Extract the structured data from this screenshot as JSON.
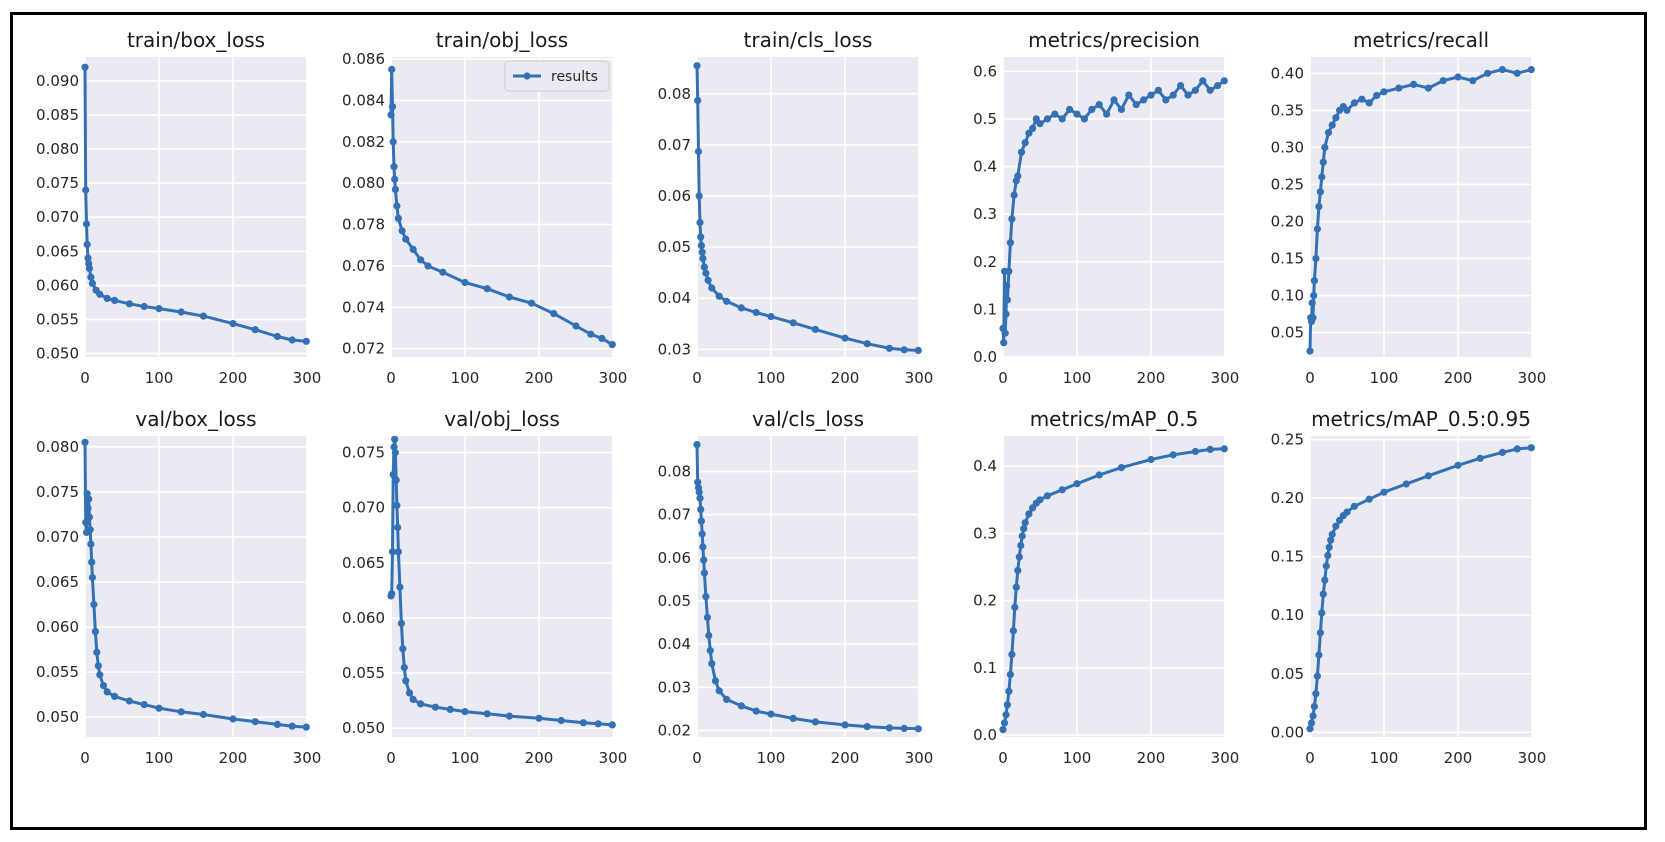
{
  "figure": {
    "legend_label": "results",
    "series_color": "#3470b4",
    "panel_bg": "#eaeaf2",
    "grid_color": "#ffffff"
  },
  "chart_data": [
    {
      "type": "line",
      "title": "train/box_loss",
      "xlim": [
        0,
        300
      ],
      "ylim": [
        0.0495,
        0.0935
      ],
      "xticks": [
        0,
        100,
        200,
        300
      ],
      "xtick_labels": [
        "0",
        "100",
        "200",
        "300"
      ],
      "yticks": [
        0.05,
        0.055,
        0.06,
        0.065,
        0.07,
        0.075,
        0.08,
        0.085,
        0.09
      ],
      "ytick_labels": [
        "0.050",
        "0.055",
        "0.060",
        "0.065",
        "0.070",
        "0.075",
        "0.080",
        "0.085",
        "0.090"
      ],
      "series": [
        {
          "name": "results",
          "x": [
            0,
            1,
            2,
            3,
            4,
            5,
            6,
            8,
            10,
            15,
            20,
            30,
            40,
            60,
            80,
            100,
            130,
            160,
            200,
            230,
            260,
            280,
            299
          ],
          "y": [
            0.092,
            0.074,
            0.069,
            0.066,
            0.064,
            0.0632,
            0.0625,
            0.0612,
            0.0603,
            0.0593,
            0.0587,
            0.0581,
            0.0578,
            0.0573,
            0.0569,
            0.0566,
            0.0561,
            0.0555,
            0.0544,
            0.0535,
            0.0525,
            0.052,
            0.0518
          ]
        }
      ]
    },
    {
      "type": "line",
      "title": "train/obj_loss",
      "legend": "top-right",
      "xlim": [
        0,
        300
      ],
      "ylim": [
        0.0716,
        0.0861
      ],
      "xticks": [
        0,
        100,
        200,
        300
      ],
      "xtick_labels": [
        "0",
        "100",
        "200",
        "300"
      ],
      "yticks": [
        0.072,
        0.074,
        0.076,
        0.078,
        0.08,
        0.082,
        0.084,
        0.086
      ],
      "ytick_labels": [
        "0.072",
        "0.074",
        "0.076",
        "0.078",
        "0.080",
        "0.082",
        "0.084",
        "0.086"
      ],
      "series": [
        {
          "name": "results",
          "x": [
            0,
            1,
            2,
            3,
            4,
            5,
            6,
            8,
            10,
            15,
            20,
            30,
            40,
            50,
            70,
            100,
            130,
            160,
            190,
            220,
            250,
            270,
            285,
            299
          ],
          "y": [
            0.0833,
            0.0855,
            0.0837,
            0.082,
            0.0808,
            0.0802,
            0.0797,
            0.0789,
            0.0783,
            0.0777,
            0.0773,
            0.0768,
            0.0763,
            0.076,
            0.0757,
            0.0752,
            0.0749,
            0.0745,
            0.0742,
            0.0737,
            0.0731,
            0.0727,
            0.0725,
            0.0722
          ]
        }
      ]
    },
    {
      "type": "line",
      "title": "train/cls_loss",
      "xlim": [
        0,
        300
      ],
      "ylim": [
        0.0285,
        0.0872
      ],
      "xticks": [
        0,
        100,
        200,
        300
      ],
      "xtick_labels": [
        "0",
        "100",
        "200",
        "300"
      ],
      "yticks": [
        0.03,
        0.04,
        0.05,
        0.06,
        0.07,
        0.08
      ],
      "ytick_labels": [
        "0.03",
        "0.04",
        "0.05",
        "0.06",
        "0.07",
        "0.08"
      ],
      "series": [
        {
          "name": "results",
          "x": [
            0,
            1,
            2,
            3,
            4,
            5,
            6,
            7,
            8,
            10,
            12,
            15,
            20,
            30,
            40,
            60,
            80,
            100,
            130,
            160,
            200,
            230,
            260,
            280,
            299
          ],
          "y": [
            0.0855,
            0.0787,
            0.0687,
            0.06,
            0.0548,
            0.052,
            0.0503,
            0.049,
            0.0478,
            0.0461,
            0.0449,
            0.0435,
            0.042,
            0.0404,
            0.0394,
            0.0381,
            0.0372,
            0.0364,
            0.0352,
            0.0339,
            0.0322,
            0.0311,
            0.0302,
            0.0299,
            0.0298
          ]
        }
      ]
    },
    {
      "type": "line",
      "title": "metrics/precision",
      "xlim": [
        0,
        300
      ],
      "ylim": [
        0.0,
        0.63
      ],
      "xticks": [
        0,
        100,
        200,
        300
      ],
      "xtick_labels": [
        "0",
        "100",
        "200",
        "300"
      ],
      "yticks": [
        0,
        0.1,
        0.2,
        0.3,
        0.4,
        0.5,
        0.6
      ],
      "ytick_labels": [
        "0.0",
        "0.1",
        "0.2",
        "0.3",
        "0.4",
        "0.5",
        "0.6"
      ],
      "series": [
        {
          "name": "results",
          "x": [
            0,
            1,
            2,
            3,
            4,
            5,
            6,
            8,
            10,
            12,
            15,
            18,
            20,
            25,
            30,
            35,
            40,
            45,
            50,
            60,
            70,
            80,
            90,
            100,
            110,
            120,
            130,
            140,
            150,
            160,
            170,
            180,
            190,
            200,
            210,
            220,
            230,
            240,
            250,
            260,
            270,
            280,
            290,
            299
          ],
          "y": [
            0.06,
            0.03,
            0.18,
            0.05,
            0.09,
            0.15,
            0.12,
            0.18,
            0.24,
            0.29,
            0.34,
            0.37,
            0.38,
            0.43,
            0.45,
            0.47,
            0.48,
            0.5,
            0.49,
            0.5,
            0.51,
            0.5,
            0.52,
            0.51,
            0.5,
            0.52,
            0.53,
            0.51,
            0.54,
            0.52,
            0.55,
            0.53,
            0.54,
            0.55,
            0.56,
            0.54,
            0.55,
            0.57,
            0.55,
            0.56,
            0.58,
            0.56,
            0.57,
            0.58
          ]
        }
      ]
    },
    {
      "type": "line",
      "title": "metrics/recall",
      "xlim": [
        0,
        300
      ],
      "ylim": [
        0.017,
        0.422
      ],
      "xticks": [
        0,
        100,
        200,
        300
      ],
      "xtick_labels": [
        "0",
        "100",
        "200",
        "300"
      ],
      "yticks": [
        0.05,
        0.1,
        0.15,
        0.2,
        0.25,
        0.3,
        0.35,
        0.4
      ],
      "ytick_labels": [
        "0.05",
        "0.10",
        "0.15",
        "0.20",
        "0.25",
        "0.30",
        "0.35",
        "0.40"
      ],
      "series": [
        {
          "name": "results",
          "x": [
            0,
            1,
            2,
            3,
            4,
            5,
            6,
            8,
            10,
            12,
            14,
            16,
            18,
            20,
            25,
            30,
            35,
            40,
            45,
            50,
            60,
            70,
            80,
            90,
            100,
            120,
            140,
            160,
            180,
            200,
            220,
            240,
            260,
            280,
            299
          ],
          "y": [
            0.025,
            0.07,
            0.065,
            0.09,
            0.07,
            0.1,
            0.12,
            0.15,
            0.19,
            0.22,
            0.24,
            0.26,
            0.28,
            0.3,
            0.32,
            0.33,
            0.34,
            0.35,
            0.355,
            0.35,
            0.36,
            0.365,
            0.36,
            0.37,
            0.375,
            0.38,
            0.385,
            0.38,
            0.39,
            0.395,
            0.39,
            0.4,
            0.405,
            0.4,
            0.405
          ]
        }
      ]
    },
    {
      "type": "line",
      "title": "val/box_loss",
      "xlim": [
        0,
        300
      ],
      "ylim": [
        0.0478,
        0.0812
      ],
      "xticks": [
        0,
        100,
        200,
        300
      ],
      "xtick_labels": [
        "0",
        "100",
        "200",
        "300"
      ],
      "yticks": [
        0.05,
        0.055,
        0.06,
        0.065,
        0.07,
        0.075,
        0.08
      ],
      "ytick_labels": [
        "0.050",
        "0.055",
        "0.060",
        "0.065",
        "0.070",
        "0.075",
        "0.080"
      ],
      "series": [
        {
          "name": "results",
          "x": [
            0,
            1,
            2,
            3,
            4,
            5,
            6,
            7,
            8,
            9,
            10,
            12,
            14,
            16,
            18,
            20,
            25,
            30,
            40,
            60,
            80,
            100,
            130,
            160,
            200,
            230,
            260,
            280,
            299
          ],
          "y": [
            0.0805,
            0.0716,
            0.0705,
            0.0748,
            0.0732,
            0.0742,
            0.0722,
            0.0708,
            0.0692,
            0.0672,
            0.0655,
            0.0625,
            0.0595,
            0.0572,
            0.0557,
            0.0547,
            0.0535,
            0.0528,
            0.0523,
            0.0518,
            0.0514,
            0.051,
            0.0506,
            0.0503,
            0.0498,
            0.0495,
            0.0492,
            0.049,
            0.0489
          ]
        }
      ]
    },
    {
      "type": "line",
      "title": "val/obj_loss",
      "xlim": [
        0,
        300
      ],
      "ylim": [
        0.0492,
        0.0765
      ],
      "xticks": [
        0,
        100,
        200,
        300
      ],
      "xtick_labels": [
        "0",
        "100",
        "200",
        "300"
      ],
      "yticks": [
        0.05,
        0.055,
        0.06,
        0.065,
        0.07,
        0.075
      ],
      "ytick_labels": [
        "0.050",
        "0.055",
        "0.060",
        "0.065",
        "0.070",
        "0.075"
      ],
      "series": [
        {
          "name": "results",
          "x": [
            0,
            1,
            2,
            3,
            4,
            5,
            6,
            7,
            8,
            9,
            10,
            12,
            14,
            16,
            18,
            20,
            25,
            30,
            40,
            60,
            80,
            100,
            130,
            160,
            200,
            230,
            260,
            280,
            299
          ],
          "y": [
            0.062,
            0.0622,
            0.066,
            0.073,
            0.0755,
            0.0762,
            0.075,
            0.0725,
            0.0702,
            0.0682,
            0.066,
            0.0628,
            0.0595,
            0.0572,
            0.0555,
            0.0543,
            0.0532,
            0.0526,
            0.0522,
            0.0519,
            0.0517,
            0.0515,
            0.0513,
            0.0511,
            0.0509,
            0.0507,
            0.0505,
            0.0504,
            0.0503
          ]
        }
      ]
    },
    {
      "type": "line",
      "title": "val/cls_loss",
      "xlim": [
        0,
        300
      ],
      "ylim": [
        0.0185,
        0.0882
      ],
      "xticks": [
        0,
        100,
        200,
        300
      ],
      "xtick_labels": [
        "0",
        "100",
        "200",
        "300"
      ],
      "yticks": [
        0.02,
        0.03,
        0.04,
        0.05,
        0.06,
        0.07,
        0.08
      ],
      "ytick_labels": [
        "0.02",
        "0.03",
        "0.04",
        "0.05",
        "0.06",
        "0.07",
        "0.08"
      ],
      "series": [
        {
          "name": "results",
          "x": [
            0,
            1,
            2,
            3,
            4,
            5,
            6,
            7,
            8,
            9,
            10,
            12,
            14,
            16,
            18,
            20,
            25,
            30,
            40,
            60,
            80,
            100,
            130,
            160,
            200,
            230,
            260,
            280,
            299
          ],
          "y": [
            0.0862,
            0.0775,
            0.0762,
            0.0752,
            0.0738,
            0.0712,
            0.0685,
            0.0655,
            0.0625,
            0.0595,
            0.0565,
            0.051,
            0.0462,
            0.042,
            0.0385,
            0.0355,
            0.0315,
            0.0292,
            0.0272,
            0.0257,
            0.0245,
            0.0238,
            0.0228,
            0.022,
            0.0213,
            0.0209,
            0.0206,
            0.0205,
            0.0204
          ]
        }
      ]
    },
    {
      "type": "line",
      "title": "metrics/mAP_0.5",
      "xlim": [
        0,
        300
      ],
      "ylim": [
        -0.003,
        0.445
      ],
      "xticks": [
        0,
        100,
        200,
        300
      ],
      "xtick_labels": [
        "0",
        "100",
        "200",
        "300"
      ],
      "yticks": [
        0,
        0.1,
        0.2,
        0.3,
        0.4
      ],
      "ytick_labels": [
        "0.0",
        "0.1",
        "0.2",
        "0.3",
        "0.4"
      ],
      "series": [
        {
          "name": "results",
          "x": [
            0,
            2,
            4,
            6,
            8,
            10,
            12,
            14,
            16,
            18,
            20,
            22,
            24,
            26,
            28,
            30,
            35,
            40,
            45,
            50,
            60,
            80,
            100,
            130,
            160,
            200,
            230,
            260,
            280,
            299
          ],
          "y": [
            0.008,
            0.018,
            0.03,
            0.045,
            0.065,
            0.09,
            0.12,
            0.155,
            0.19,
            0.22,
            0.245,
            0.265,
            0.282,
            0.296,
            0.307,
            0.316,
            0.329,
            0.338,
            0.345,
            0.35,
            0.356,
            0.365,
            0.374,
            0.387,
            0.398,
            0.41,
            0.417,
            0.422,
            0.425,
            0.426
          ]
        }
      ]
    },
    {
      "type": "line",
      "title": "metrics/mAP_0.5:0.95",
      "xlim": [
        0,
        300
      ],
      "ylim": [
        -0.004,
        0.253
      ],
      "xticks": [
        0,
        100,
        200,
        300
      ],
      "xtick_labels": [
        "0",
        "100",
        "200",
        "300"
      ],
      "yticks": [
        0,
        0.05,
        0.1,
        0.15,
        0.2,
        0.25
      ],
      "ytick_labels": [
        "0.00",
        "0.05",
        "0.10",
        "0.15",
        "0.20",
        "0.25"
      ],
      "series": [
        {
          "name": "results",
          "x": [
            0,
            2,
            4,
            6,
            8,
            10,
            12,
            14,
            16,
            18,
            20,
            22,
            24,
            26,
            28,
            30,
            35,
            40,
            45,
            50,
            60,
            80,
            100,
            130,
            160,
            200,
            230,
            260,
            280,
            299
          ],
          "y": [
            0.003,
            0.008,
            0.014,
            0.022,
            0.033,
            0.048,
            0.066,
            0.085,
            0.102,
            0.118,
            0.13,
            0.142,
            0.151,
            0.158,
            0.164,
            0.169,
            0.176,
            0.181,
            0.185,
            0.188,
            0.193,
            0.199,
            0.205,
            0.212,
            0.219,
            0.228,
            0.234,
            0.239,
            0.242,
            0.243
          ]
        }
      ]
    }
  ]
}
